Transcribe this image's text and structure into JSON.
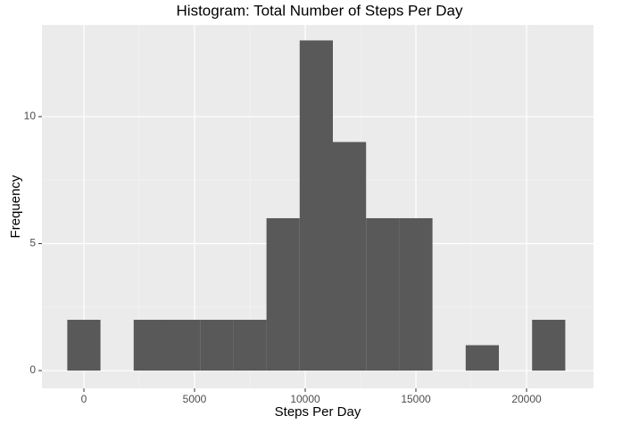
{
  "chart_data": {
    "type": "histogram",
    "title": "Histogram: Total Number of Steps Per Day",
    "x_label": "Steps Per Day",
    "y_label": "Frequency",
    "bins": [
      -750,
      750,
      2250,
      3750,
      5250,
      6750,
      8250,
      9750,
      11250,
      12750,
      14250,
      15750,
      17250,
      18750,
      20250,
      21750
    ],
    "values": [
      2,
      0,
      2,
      2,
      2,
      2,
      6,
      13,
      9,
      6,
      6,
      0,
      1,
      0,
      2
    ],
    "color": "#595959",
    "xlim": [
      -1895,
      23024
    ],
    "xticks": [
      0,
      5000,
      10000,
      15000,
      20000
    ],
    "ylim": [
      -0.7,
      13.61
    ],
    "yticks": [
      0,
      5,
      10
    ],
    "grid": true
  }
}
